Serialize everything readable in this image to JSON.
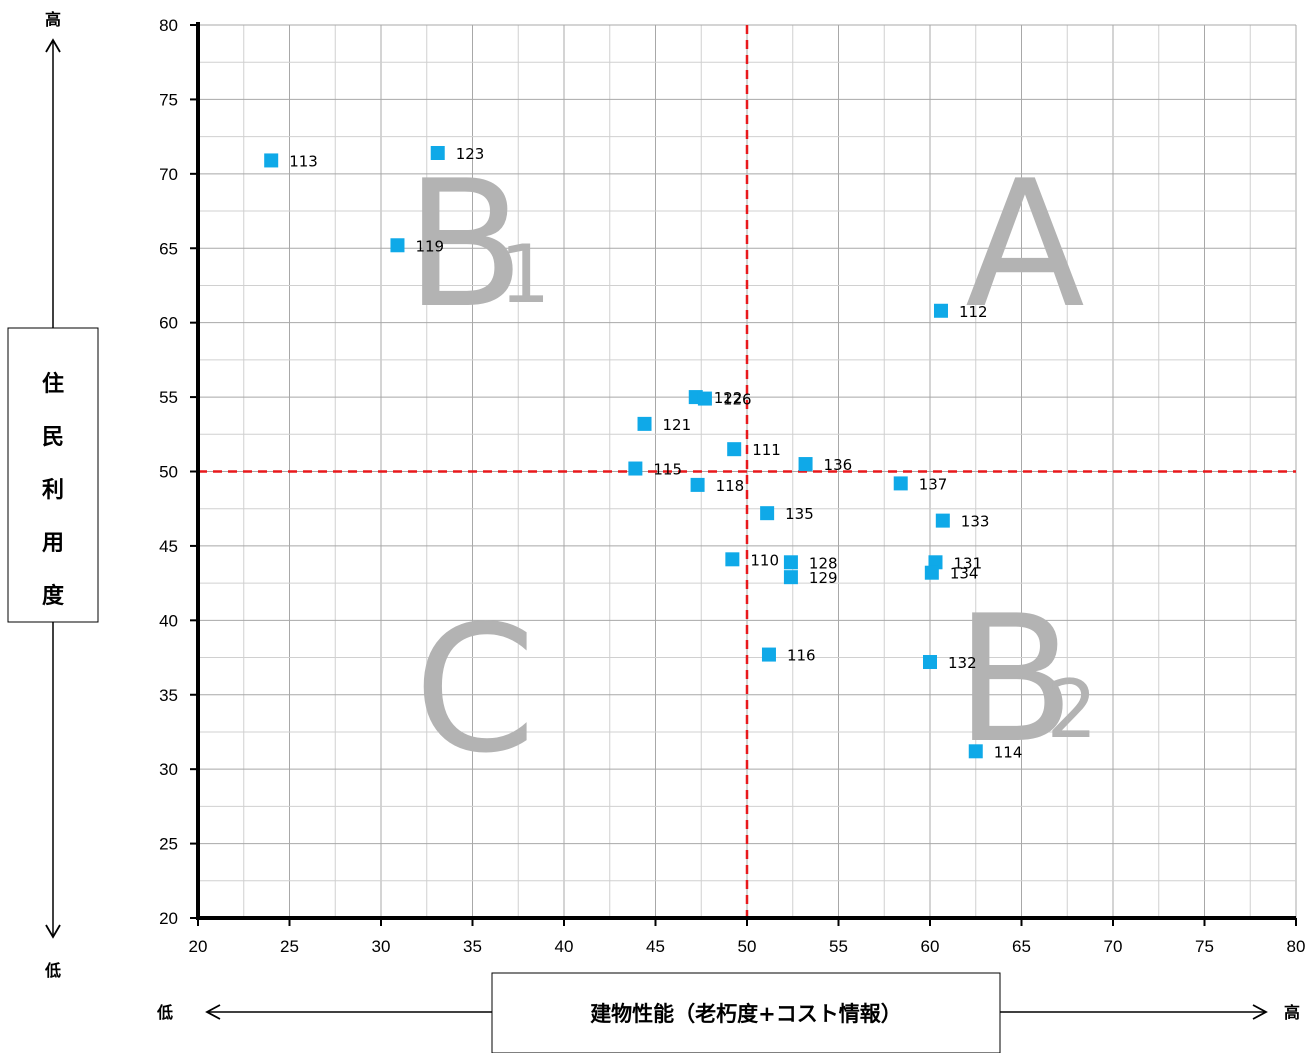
{
  "chart_data": {
    "type": "scatter",
    "title": "",
    "xlabel": "建物性能（老朽度+コスト情報）",
    "ylabel": [
      "住",
      "民",
      "利",
      "用",
      "度"
    ],
    "xlim": [
      20,
      80
    ],
    "ylim": [
      20,
      80
    ],
    "x_ticks": [
      20,
      25,
      30,
      35,
      40,
      45,
      50,
      55,
      60,
      65,
      70,
      75,
      80
    ],
    "y_ticks": [
      20,
      25,
      30,
      35,
      40,
      45,
      50,
      55,
      60,
      65,
      70,
      75,
      80
    ],
    "grid": true,
    "marker_color": "#0fa9e8",
    "threshold_color": "#e8191c",
    "threshold_x": 50,
    "threshold_y": 50,
    "points": [
      {
        "label": "113",
        "x": 24.0,
        "y": 70.9
      },
      {
        "label": "123",
        "x": 33.1,
        "y": 71.4
      },
      {
        "label": "119",
        "x": 30.9,
        "y": 65.2
      },
      {
        "label": "112",
        "x": 60.6,
        "y": 60.8
      },
      {
        "label": "122",
        "x": 47.2,
        "y": 55.0
      },
      {
        "label": "126",
        "x": 47.7,
        "y": 54.9
      },
      {
        "label": "121",
        "x": 44.4,
        "y": 53.2
      },
      {
        "label": "111",
        "x": 49.3,
        "y": 51.5
      },
      {
        "label": "136",
        "x": 53.2,
        "y": 50.5
      },
      {
        "label": "115",
        "x": 43.9,
        "y": 50.2
      },
      {
        "label": "137",
        "x": 58.4,
        "y": 49.2
      },
      {
        "label": "118",
        "x": 47.3,
        "y": 49.1
      },
      {
        "label": "135",
        "x": 51.1,
        "y": 47.2
      },
      {
        "label": "133",
        "x": 60.7,
        "y": 46.7
      },
      {
        "label": "110",
        "x": 49.2,
        "y": 44.1
      },
      {
        "label": "128",
        "x": 52.4,
        "y": 43.9
      },
      {
        "label": "131",
        "x": 60.3,
        "y": 43.9
      },
      {
        "label": "129",
        "x": 52.4,
        "y": 42.9
      },
      {
        "label": "134",
        "x": 60.1,
        "y": 43.2
      },
      {
        "label": "116",
        "x": 51.2,
        "y": 37.7
      },
      {
        "label": "132",
        "x": 60.0,
        "y": 37.2
      },
      {
        "label": "114",
        "x": 62.5,
        "y": 31.2
      }
    ],
    "quadrants": [
      {
        "letter": "A",
        "sub": ""
      },
      {
        "letter": "B",
        "sub": "1"
      },
      {
        "letter": "B",
        "sub": "2"
      },
      {
        "letter": "C",
        "sub": ""
      }
    ],
    "axis_arrows": {
      "y_high": "高",
      "y_low": "低",
      "x_low": "低",
      "x_high": "高"
    }
  }
}
